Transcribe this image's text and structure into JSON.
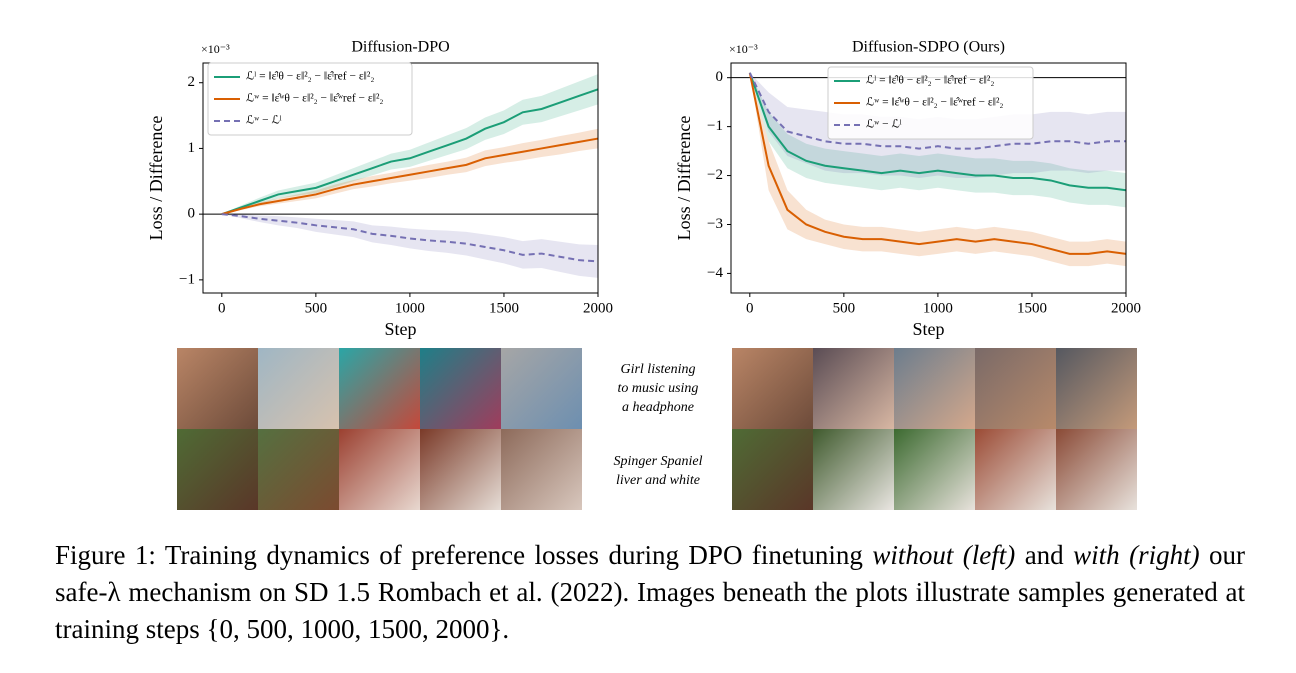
{
  "chart_data": [
    {
      "type": "line",
      "title": "Diffusion-DPO",
      "scale_label": "×10⁻³",
      "xlabel": "Step",
      "ylabel": "Loss / Difference",
      "x": [
        0,
        100,
        200,
        300,
        400,
        500,
        600,
        700,
        800,
        900,
        1000,
        1100,
        1200,
        1300,
        1400,
        1500,
        1600,
        1700,
        1800,
        1900,
        2000
      ],
      "xlim": [
        -100,
        2000
      ],
      "ylim": [
        -1.2,
        2.3
      ],
      "xticks": [
        0,
        500,
        1000,
        1500,
        2000
      ],
      "yticks": [
        {
          "value": -1,
          "label": "−1"
        },
        0,
        1,
        2
      ],
      "hline": 0,
      "legend": "upper left",
      "series": [
        {
          "name": "ℒˡ = ‖ε̂ˡθ − ε‖²₂ − ‖ε̂ˡref − ε‖²₂",
          "color": "#1b9e77",
          "dash": false,
          "values": [
            0,
            0.1,
            0.2,
            0.3,
            0.35,
            0.4,
            0.5,
            0.6,
            0.7,
            0.8,
            0.85,
            0.95,
            1.05,
            1.15,
            1.3,
            1.4,
            1.55,
            1.6,
            1.7,
            1.8,
            1.9
          ],
          "spread": [
            0,
            0.03,
            0.05,
            0.06,
            0.07,
            0.08,
            0.09,
            0.1,
            0.11,
            0.12,
            0.13,
            0.14,
            0.15,
            0.16,
            0.17,
            0.18,
            0.19,
            0.2,
            0.21,
            0.22,
            0.23
          ]
        },
        {
          "name": "ℒʷ = ‖ε̂ʷθ − ε‖²₂ − ‖ε̂ʷref − ε‖²₂",
          "color": "#d95f02",
          "dash": false,
          "values": [
            0,
            0.08,
            0.15,
            0.2,
            0.25,
            0.3,
            0.38,
            0.45,
            0.5,
            0.55,
            0.6,
            0.65,
            0.7,
            0.75,
            0.85,
            0.9,
            0.95,
            1.0,
            1.05,
            1.1,
            1.15
          ],
          "spread": [
            0,
            0.02,
            0.03,
            0.04,
            0.05,
            0.06,
            0.07,
            0.07,
            0.08,
            0.08,
            0.09,
            0.1,
            0.1,
            0.11,
            0.12,
            0.12,
            0.13,
            0.13,
            0.14,
            0.14,
            0.15
          ]
        },
        {
          "name": "ℒʷ − ℒˡ",
          "color": "#7570b3",
          "dash": true,
          "values": [
            0,
            -0.03,
            -0.07,
            -0.1,
            -0.13,
            -0.17,
            -0.2,
            -0.23,
            -0.3,
            -0.33,
            -0.37,
            -0.4,
            -0.42,
            -0.45,
            -0.5,
            -0.55,
            -0.62,
            -0.6,
            -0.65,
            -0.7,
            -0.72
          ],
          "spread": [
            0,
            0.03,
            0.05,
            0.07,
            0.08,
            0.1,
            0.11,
            0.12,
            0.13,
            0.14,
            0.15,
            0.16,
            0.17,
            0.18,
            0.19,
            0.2,
            0.21,
            0.22,
            0.23,
            0.24,
            0.25
          ]
        }
      ]
    },
    {
      "type": "line",
      "title": "Diffusion-SDPO (Ours)",
      "scale_label": "×10⁻³",
      "xlabel": "Step",
      "ylabel": "Loss / Difference",
      "x": [
        0,
        100,
        200,
        300,
        400,
        500,
        600,
        700,
        800,
        900,
        1000,
        1100,
        1200,
        1300,
        1400,
        1500,
        1600,
        1700,
        1800,
        1900,
        2000
      ],
      "xlim": [
        -100,
        2000
      ],
      "ylim": [
        -4.4,
        0.3
      ],
      "xticks": [
        0,
        500,
        1000,
        1500,
        2000
      ],
      "yticks": [
        {
          "value": -4,
          "label": "−4"
        },
        {
          "value": -3,
          "label": "−3"
        },
        {
          "value": -2,
          "label": "−2"
        },
        {
          "value": -1,
          "label": "−1"
        },
        0
      ],
      "hline": 0,
      "legend": "upper center",
      "series": [
        {
          "name": "ℒˡ = ‖ε̂ˡθ − ε‖²₂ − ‖ε̂ˡref − ε‖²₂",
          "color": "#1b9e77",
          "dash": false,
          "values": [
            0.1,
            -1.0,
            -1.5,
            -1.7,
            -1.8,
            -1.85,
            -1.9,
            -1.95,
            -1.9,
            -1.95,
            -1.9,
            -1.95,
            -2.0,
            -2.0,
            -2.05,
            -2.05,
            -2.1,
            -2.2,
            -2.25,
            -2.25,
            -2.3
          ],
          "spread": [
            0,
            0.3,
            0.35,
            0.35,
            0.35,
            0.35,
            0.35,
            0.35,
            0.35,
            0.35,
            0.35,
            0.35,
            0.35,
            0.35,
            0.35,
            0.35,
            0.35,
            0.35,
            0.35,
            0.35,
            0.35
          ]
        },
        {
          "name": "ℒʷ = ‖ε̂ʷθ − ε‖²₂ − ‖ε̂ʷref − ε‖²₂",
          "color": "#d95f02",
          "dash": false,
          "values": [
            0.1,
            -1.8,
            -2.7,
            -3.0,
            -3.15,
            -3.25,
            -3.3,
            -3.3,
            -3.35,
            -3.4,
            -3.35,
            -3.3,
            -3.35,
            -3.3,
            -3.35,
            -3.4,
            -3.5,
            -3.6,
            -3.6,
            -3.55,
            -3.6
          ],
          "spread": [
            0,
            0.5,
            0.4,
            0.3,
            0.25,
            0.25,
            0.25,
            0.25,
            0.25,
            0.25,
            0.25,
            0.25,
            0.25,
            0.25,
            0.25,
            0.25,
            0.25,
            0.25,
            0.25,
            0.25,
            0.25
          ]
        },
        {
          "name": "ℒʷ − ℒˡ",
          "color": "#7570b3",
          "dash": true,
          "values": [
            0.1,
            -0.7,
            -1.1,
            -1.2,
            -1.3,
            -1.35,
            -1.35,
            -1.4,
            -1.4,
            -1.45,
            -1.4,
            -1.45,
            -1.45,
            -1.4,
            -1.35,
            -1.35,
            -1.3,
            -1.3,
            -1.35,
            -1.3,
            -1.3
          ],
          "spread": [
            0,
            0.4,
            0.5,
            0.55,
            0.6,
            0.6,
            0.6,
            0.6,
            0.6,
            0.6,
            0.6,
            0.6,
            0.6,
            0.6,
            0.6,
            0.6,
            0.6,
            0.6,
            0.6,
            0.6,
            0.6
          ]
        }
      ]
    }
  ],
  "prompts": [
    {
      "lines": [
        "Girl listening",
        "to music using",
        "a headphone"
      ]
    },
    {
      "lines": [
        "Spinger Spaniel",
        "liver and white"
      ]
    }
  ],
  "caption": {
    "segments": [
      "Figure 1: Training dynamics of preference losses during DPO finetuning ",
      "without (left)",
      " and ",
      "with (right)",
      " our safe-λ mechanism on SD 1.5 Rombach et al. (2022). Images beneath the plots illustrate samples generated at training steps {0, 500, 1000, 1500, 2000}."
    ]
  }
}
